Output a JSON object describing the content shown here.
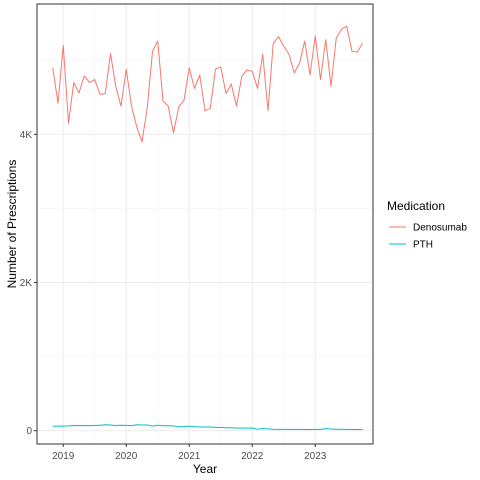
{
  "chart_data": {
    "type": "line",
    "xlabel": "Year",
    "ylabel": "Number of Prescriptions",
    "x_tick_labels": [
      "2019",
      "2020",
      "2021",
      "2022",
      "2023"
    ],
    "y_tick_labels": [
      "0",
      "2K",
      "4K"
    ],
    "y_ticks": [
      0,
      2000,
      4000
    ],
    "ylim": [
      -180,
      5760
    ],
    "xlim": [
      "2018-08-01",
      "2023-12-01"
    ],
    "grid": true,
    "legend_position": "right",
    "legend_title": "Medication",
    "x": [
      "2018-11",
      "2018-12",
      "2019-01",
      "2019-02",
      "2019-03",
      "2019-04",
      "2019-05",
      "2019-06",
      "2019-07",
      "2019-08",
      "2019-09",
      "2019-10",
      "2019-11",
      "2019-12",
      "2020-01",
      "2020-02",
      "2020-03",
      "2020-04",
      "2020-05",
      "2020-06",
      "2020-07",
      "2020-08",
      "2020-09",
      "2020-10",
      "2020-11",
      "2020-12",
      "2021-01",
      "2021-02",
      "2021-03",
      "2021-04",
      "2021-05",
      "2021-06",
      "2021-07",
      "2021-08",
      "2021-09",
      "2021-10",
      "2021-11",
      "2021-12",
      "2022-01",
      "2022-02",
      "2022-03",
      "2022-04",
      "2022-05",
      "2022-06",
      "2022-07",
      "2022-08",
      "2022-09",
      "2022-10",
      "2022-11",
      "2022-12",
      "2023-01",
      "2023-02",
      "2023-03",
      "2023-04",
      "2023-05",
      "2023-06",
      "2023-07",
      "2023-08",
      "2023-09",
      "2023-10"
    ],
    "series": [
      {
        "name": "Denosumab",
        "color": "#F8766D",
        "values": [
          4900,
          4420,
          5200,
          4150,
          4700,
          4560,
          4790,
          4700,
          4740,
          4540,
          4550,
          5090,
          4650,
          4380,
          4880,
          4380,
          4100,
          3900,
          4360,
          5120,
          5260,
          4450,
          4380,
          4020,
          4370,
          4460,
          4900,
          4620,
          4800,
          4320,
          4350,
          4880,
          4910,
          4550,
          4680,
          4380,
          4780,
          4870,
          4850,
          4620,
          5080,
          4320,
          5230,
          5320,
          5190,
          5080,
          4830,
          4960,
          5260,
          4800,
          5330,
          4740,
          5280,
          4650,
          5300,
          5420,
          5460,
          5120,
          5110,
          5230
        ]
      },
      {
        "name": "PTH",
        "color": "#00BFC4",
        "values": [
          60,
          62,
          62,
          65,
          70,
          68,
          70,
          66,
          72,
          72,
          80,
          76,
          70,
          74,
          72,
          66,
          80,
          76,
          76,
          62,
          74,
          66,
          66,
          64,
          52,
          54,
          62,
          52,
          50,
          50,
          50,
          44,
          44,
          40,
          40,
          36,
          36,
          34,
          34,
          20,
          28,
          24,
          20,
          18,
          18,
          18,
          18,
          18,
          16,
          16,
          18,
          18,
          28,
          22,
          20,
          20,
          18,
          16,
          16,
          14
        ]
      }
    ]
  }
}
